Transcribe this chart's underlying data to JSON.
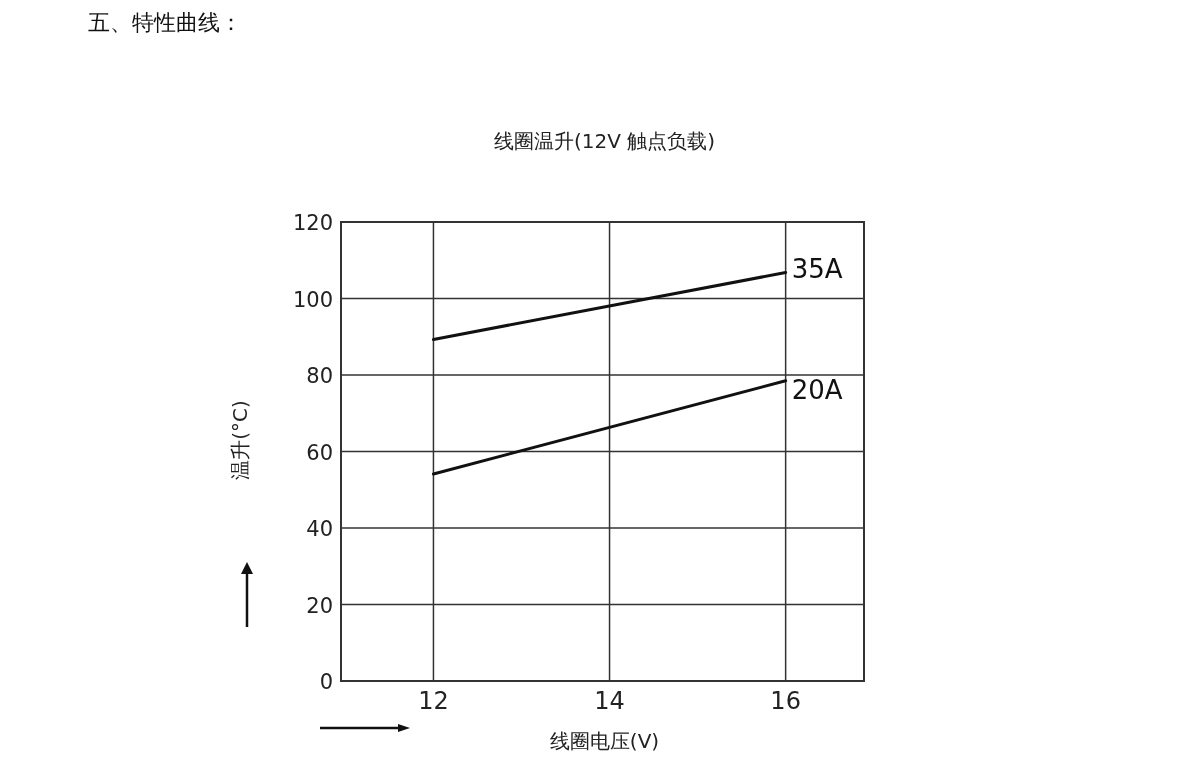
{
  "chart_data": {
    "type": "line",
    "title": "线圈温升(12V 触点负载)",
    "xlabel": "线圈电压(V)",
    "ylabel": "温升(°C)",
    "annotations": [
      "五、特性曲线："
    ],
    "x": [
      12,
      16
    ],
    "series": [
      {
        "name": "35A",
        "color": "#111111",
        "values": [
          89.3,
          106.8
        ]
      },
      {
        "name": "20A",
        "color": "#111111",
        "values": [
          54.1,
          78.5
        ]
      }
    ],
    "xlim": [
      10.95,
      16.89
    ],
    "xticks": [
      12,
      14,
      16
    ],
    "ylim": [
      0,
      120
    ],
    "yticks": [
      0,
      20,
      40,
      60,
      80,
      100,
      120
    ],
    "grid": true,
    "marker": "none",
    "line_style": "solid"
  }
}
